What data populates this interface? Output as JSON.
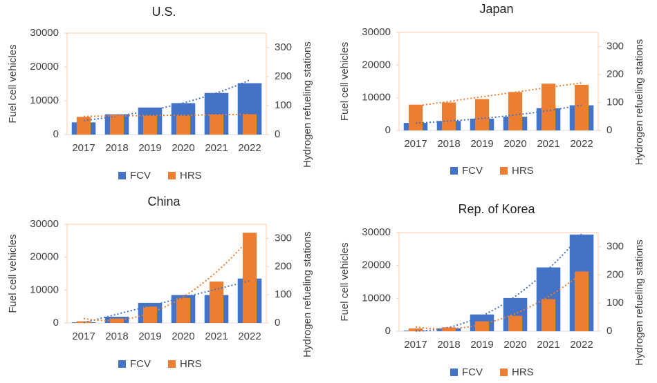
{
  "chart_data": [
    {
      "type": "bar",
      "title": "U.S.",
      "y_label": "Fuel cell vehicles",
      "y2_label": "Hydrogen refueling stations",
      "categories": [
        "2017",
        "2018",
        "2019",
        "2020",
        "2021",
        "2022"
      ],
      "series": [
        {
          "name": "FCV",
          "color": "#4472c4",
          "values": [
            3600,
            6000,
            8000,
            9300,
            12300,
            15200
          ],
          "trendline": "exponential"
        },
        {
          "name": "HRS",
          "color": "#ed7d31",
          "axis": "y2",
          "values": [
            61,
            68,
            65,
            65,
            69,
            70
          ],
          "trendline": "linear"
        }
      ],
      "ylim": [
        0,
        30000
      ],
      "yticks": [
        0,
        10000,
        20000,
        30000
      ],
      "y2lim": [
        0,
        350
      ],
      "y2ticks": [
        0,
        100,
        200,
        300
      ]
    },
    {
      "type": "bar",
      "title": "Japan",
      "y_label": "Fuel cell vehicles",
      "y2_label": "Hydrogen refueling stations",
      "categories": [
        "2017",
        "2018",
        "2019",
        "2020",
        "2021",
        "2022"
      ],
      "series": [
        {
          "name": "FCV",
          "color": "#4472c4",
          "values": [
            2300,
            2900,
            3600,
            4200,
            6800,
            7700
          ],
          "trendline": "exponential"
        },
        {
          "name": "HRS",
          "color": "#ed7d31",
          "axis": "y2",
          "values": [
            92,
            100,
            112,
            137,
            167,
            163
          ],
          "trendline": "linear"
        }
      ],
      "ylim": [
        0,
        30000
      ],
      "yticks": [
        0,
        10000,
        20000,
        30000
      ],
      "y2lim": [
        0,
        350
      ],
      "y2ticks": [
        0,
        100,
        200,
        300
      ]
    },
    {
      "type": "bar",
      "title": "China",
      "y_label": "Fuel cell vehicles",
      "y2_label": "Hydrogen refueling stations",
      "categories": [
        "2017",
        "2018",
        "2019",
        "2020",
        "2021",
        "2022"
      ],
      "series": [
        {
          "name": "FCV",
          "color": "#4472c4",
          "values": [
            200,
            1900,
            6100,
            8500,
            8500,
            13500
          ],
          "trendline": "polynomial"
        },
        {
          "name": "HRS",
          "color": "#ed7d31",
          "axis": "y2",
          "values": [
            6,
            16,
            58,
            89,
            147,
            320
          ],
          "trendline": "polynomial"
        }
      ],
      "ylim": [
        0,
        30000
      ],
      "yticks": [
        0,
        10000,
        20000,
        30000
      ],
      "y2lim": [
        0,
        350
      ],
      "y2ticks": [
        0,
        100,
        200,
        300
      ]
    },
    {
      "type": "bar",
      "title": "Rep. of Korea",
      "y_label": "Fuel cell vehicles",
      "y2_label": "Hydrogen refueling stations",
      "categories": [
        "2017",
        "2018",
        "2019",
        "2020",
        "2021",
        "2022"
      ],
      "series": [
        {
          "name": "FCV",
          "color": "#4472c4",
          "values": [
            200,
            900,
            5100,
            10100,
            19400,
            29400
          ],
          "trendline": "polynomial"
        },
        {
          "name": "HRS",
          "color": "#ed7d31",
          "axis": "y2",
          "values": [
            10,
            14,
            35,
            55,
            114,
            212
          ],
          "trendline": "polynomial"
        }
      ],
      "ylim": [
        0,
        30000
      ],
      "yticks": [
        0,
        10000,
        20000,
        30000
      ],
      "y2lim": [
        0,
        350
      ],
      "y2ticks": [
        0,
        100,
        200,
        300
      ]
    }
  ]
}
